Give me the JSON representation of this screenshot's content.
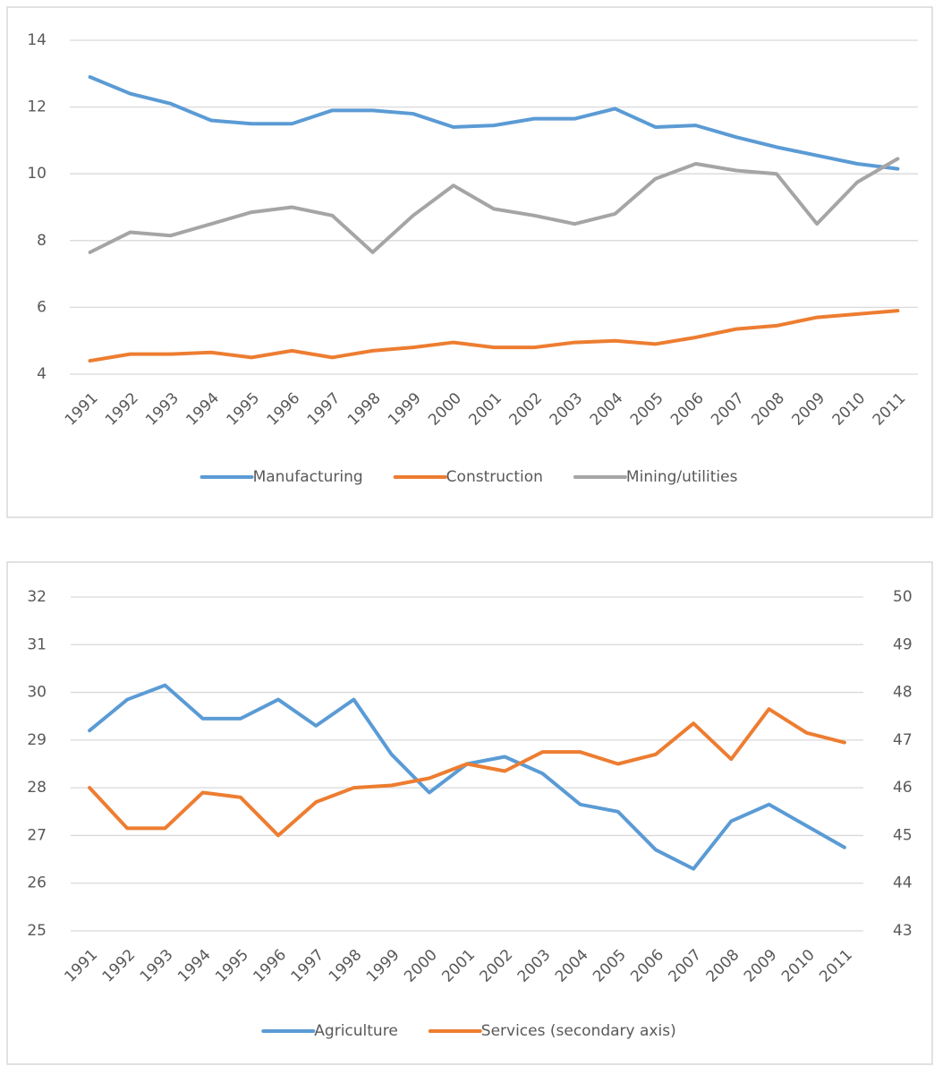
{
  "chart_data": [
    {
      "type": "line",
      "categories": [
        "1991",
        "1992",
        "1993",
        "1994",
        "1995",
        "1996",
        "1997",
        "1998",
        "1999",
        "2000",
        "2001",
        "2002",
        "2003",
        "2004",
        "2005",
        "2006",
        "2007",
        "2008",
        "2009",
        "2010",
        "2011"
      ],
      "ylim": [
        4,
        14
      ],
      "yticks": [
        4,
        6,
        8,
        10,
        12,
        14
      ],
      "grid": true,
      "legend": "bottom",
      "series": [
        {
          "name": "Manufacturing",
          "color": "#5b9bd5",
          "values": [
            12.9,
            12.4,
            12.1,
            11.6,
            11.5,
            11.5,
            11.9,
            11.9,
            11.8,
            11.4,
            11.45,
            11.65,
            11.65,
            11.95,
            11.4,
            11.45,
            11.1,
            10.8,
            10.55,
            10.3,
            10.15
          ]
        },
        {
          "name": "Construction",
          "color": "#ed7d31",
          "values": [
            4.4,
            4.6,
            4.6,
            4.65,
            4.5,
            4.7,
            4.5,
            4.7,
            4.8,
            4.95,
            4.8,
            4.8,
            4.95,
            5.0,
            4.9,
            5.1,
            5.35,
            5.45,
            5.7,
            5.8,
            5.9
          ]
        },
        {
          "name": "Mining/utilities",
          "color": "#a5a5a5",
          "values": [
            7.65,
            8.25,
            8.15,
            8.5,
            8.85,
            9.0,
            8.75,
            7.65,
            8.75,
            9.65,
            8.95,
            8.75,
            8.5,
            8.8,
            9.85,
            10.3,
            10.1,
            10.0,
            8.5,
            9.75,
            10.45
          ]
        }
      ]
    },
    {
      "type": "line",
      "categories": [
        "1991",
        "1992",
        "1993",
        "1994",
        "1995",
        "1996",
        "1997",
        "1998",
        "1999",
        "2000",
        "2001",
        "2002",
        "2003",
        "2004",
        "2005",
        "2006",
        "2007",
        "2008",
        "2009",
        "2010",
        "2011"
      ],
      "ylim": [
        25,
        32
      ],
      "yticks": [
        25,
        26,
        27,
        28,
        29,
        30,
        31,
        32
      ],
      "y2lim": [
        43,
        50
      ],
      "y2ticks": [
        43,
        44,
        45,
        46,
        47,
        48,
        49,
        50
      ],
      "grid": true,
      "legend": "bottom",
      "series": [
        {
          "name": "Agriculture",
          "color": "#5b9bd5",
          "values": [
            29.2,
            29.85,
            30.15,
            29.45,
            29.45,
            29.85,
            29.3,
            29.85,
            28.7,
            27.9,
            28.5,
            28.65,
            28.3,
            27.65,
            27.5,
            26.7,
            26.3,
            27.3,
            27.65,
            27.2,
            26.75
          ]
        },
        {
          "name": "Services (secondary axis)",
          "color": "#ed7d31",
          "axis": "y2",
          "values": [
            46.0,
            45.15,
            45.15,
            45.9,
            45.8,
            45.0,
            45.7,
            46.0,
            46.05,
            46.2,
            46.5,
            46.35,
            46.75,
            46.75,
            46.5,
            46.7,
            47.35,
            46.6,
            47.65,
            47.15,
            46.95
          ]
        }
      ]
    }
  ]
}
